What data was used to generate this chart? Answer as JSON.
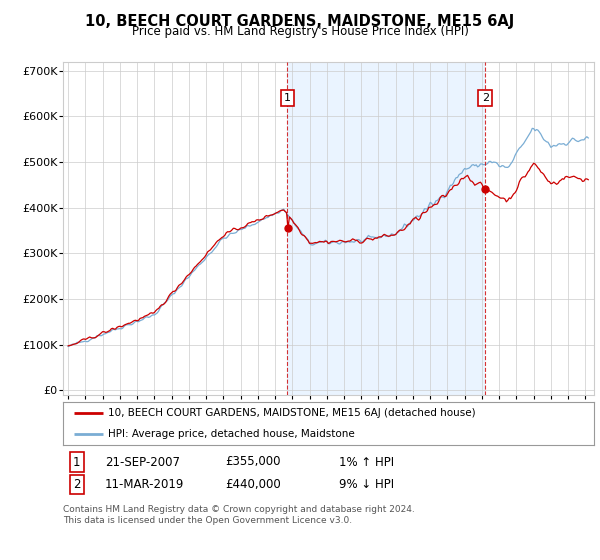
{
  "title": "10, BEECH COURT GARDENS, MAIDSTONE, ME15 6AJ",
  "subtitle": "Price paid vs. HM Land Registry's House Price Index (HPI)",
  "ylabel_ticks": [
    "£0",
    "£100K",
    "£200K",
    "£300K",
    "£400K",
    "£500K",
    "£600K",
    "£700K"
  ],
  "ytick_vals": [
    0,
    100000,
    200000,
    300000,
    400000,
    500000,
    600000,
    700000
  ],
  "ylim": [
    -10000,
    720000
  ],
  "xlim_start": 1994.7,
  "xlim_end": 2025.5,
  "marker1_x": 2007.72,
  "marker1_y": 355000,
  "marker2_x": 2019.19,
  "marker2_y": 440000,
  "legend_property_label": "10, BEECH COURT GARDENS, MAIDSTONE, ME15 6AJ (detached house)",
  "legend_hpi_label": "HPI: Average price, detached house, Maidstone",
  "table_row1_num": "1",
  "table_row1_date": "21-SEP-2007",
  "table_row1_price": "£355,000",
  "table_row1_hpi": "1% ↑ HPI",
  "table_row2_num": "2",
  "table_row2_date": "11-MAR-2019",
  "table_row2_price": "£440,000",
  "table_row2_hpi": "9% ↓ HPI",
  "footnote": "Contains HM Land Registry data © Crown copyright and database right 2024.\nThis data is licensed under the Open Government Licence v3.0.",
  "property_color": "#cc0000",
  "hpi_color": "#7aadd4",
  "hpi_fill_color": "#ddeeff",
  "grid_color": "#cccccc",
  "bg_color": "#ffffff",
  "shade_color": "#ddeeff"
}
